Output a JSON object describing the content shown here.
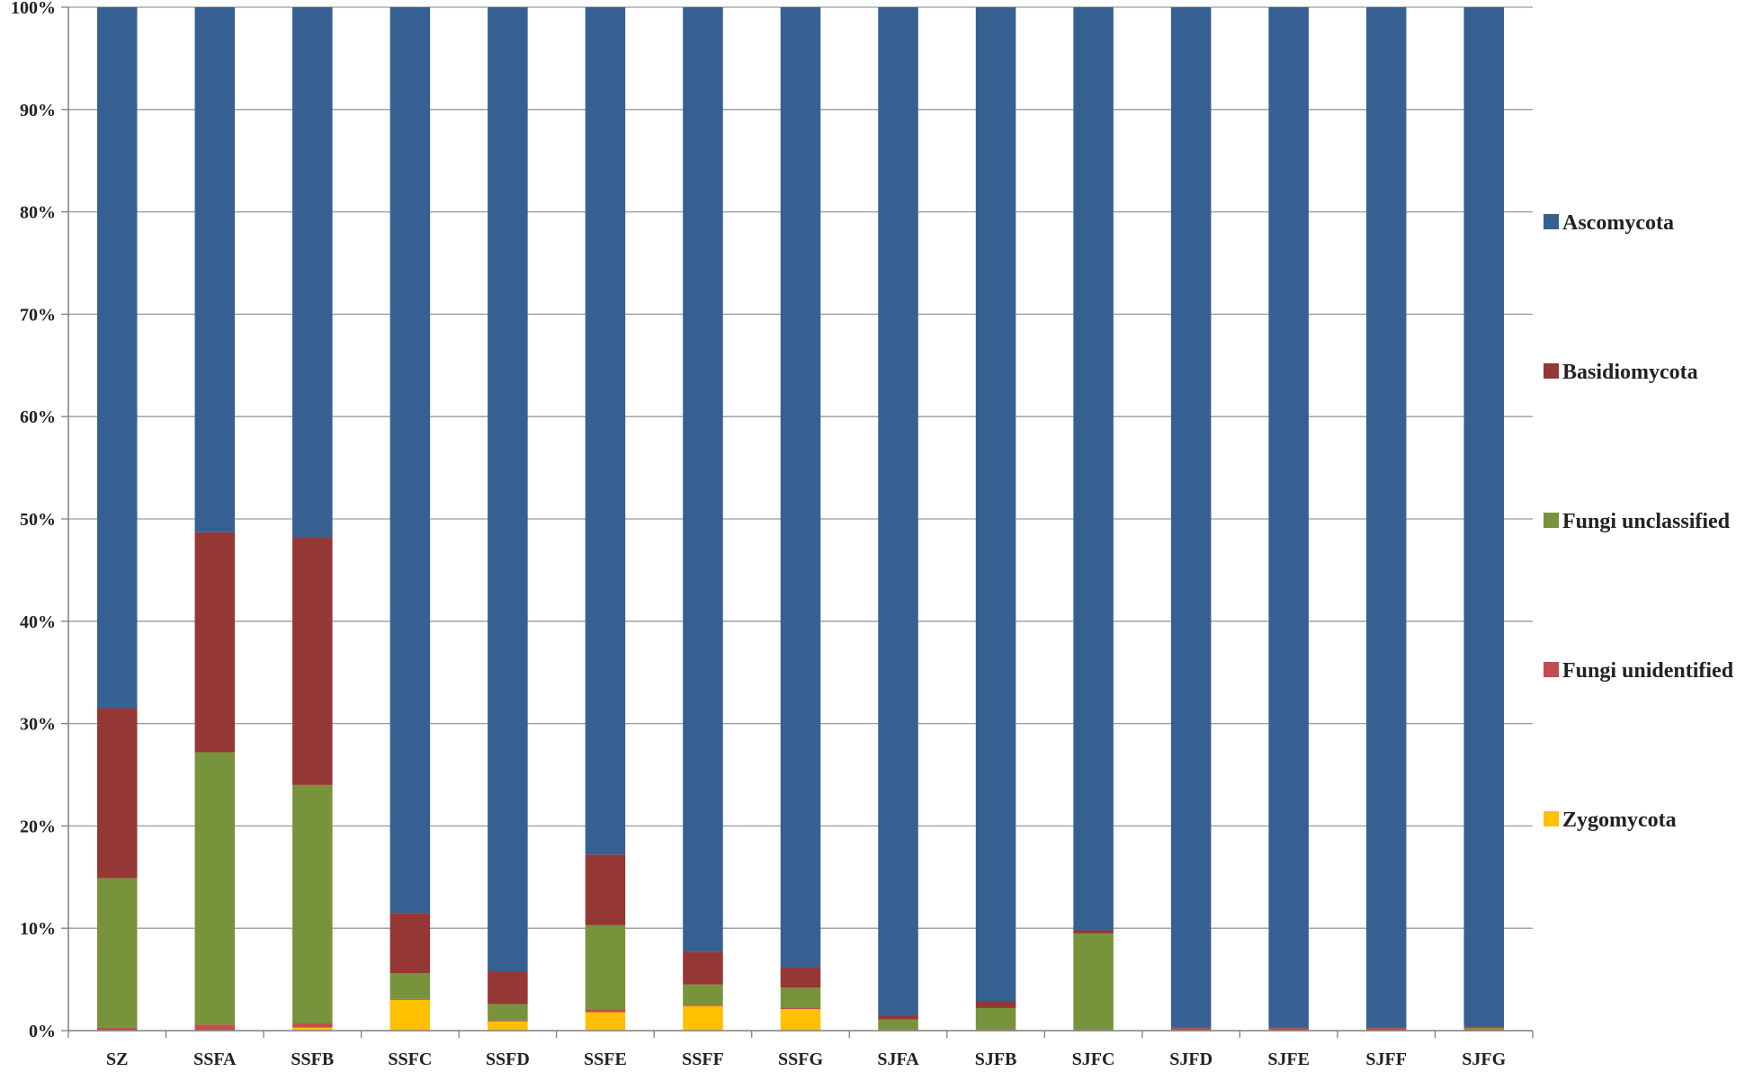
{
  "chart_data": {
    "type": "bar",
    "stacked": true,
    "percent_stacked": true,
    "categories": [
      "SZ",
      "SSFA",
      "SSFB",
      "SSFC",
      "SSFD",
      "SSFE",
      "SSFF",
      "SSFG",
      "SJFA",
      "SJFB",
      "SJFC",
      "SJFD",
      "SJFE",
      "SJFF",
      "SJFG"
    ],
    "y_ticks": [
      "0%",
      "10%",
      "20%",
      "30%",
      "40%",
      "50%",
      "60%",
      "70%",
      "80%",
      "90%",
      "100%"
    ],
    "ylim": [
      0,
      100
    ],
    "grid": true,
    "legend_position": "right",
    "series": [
      {
        "name": "Zygomycota",
        "color": "#FFC000",
        "values": [
          0.0,
          0.0,
          0.3,
          3.0,
          0.9,
          1.8,
          2.4,
          2.1,
          0.0,
          0.0,
          0.0,
          0.0,
          0.0,
          0.0,
          0.0
        ]
      },
      {
        "name": "Fungi unidentified",
        "color": "#C0504D",
        "values": [
          0.3,
          0.6,
          0.4,
          0.1,
          0.1,
          0.3,
          0.1,
          0.1,
          0.1,
          0.1,
          0.1,
          0.2,
          0.2,
          0.2,
          0.1
        ]
      },
      {
        "name": "Fungi unclassified",
        "color": "#77933C",
        "values": [
          14.6,
          26.6,
          23.3,
          2.5,
          1.6,
          8.2,
          2.0,
          2.0,
          1.0,
          2.1,
          9.4,
          0.0,
          0.0,
          0.0,
          0.2
        ]
      },
      {
        "name": "Basidiomycota",
        "color": "#953735",
        "values": [
          16.6,
          21.5,
          24.2,
          5.9,
          3.2,
          6.9,
          3.2,
          2.0,
          0.4,
          0.7,
          0.3,
          0.1,
          0.1,
          0.1,
          0.1
        ]
      },
      {
        "name": "Ascomycota",
        "color": "#366092",
        "values": [
          68.5,
          51.3,
          51.8,
          88.5,
          94.2,
          82.8,
          92.3,
          93.8,
          98.5,
          97.1,
          90.2,
          99.7,
          99.7,
          99.7,
          99.6
        ]
      }
    ],
    "legend_order": [
      "Ascomycota",
      "Basidiomycota",
      "Fungi unclassified",
      "Fungi unidentified",
      "Zygomycota"
    ]
  }
}
